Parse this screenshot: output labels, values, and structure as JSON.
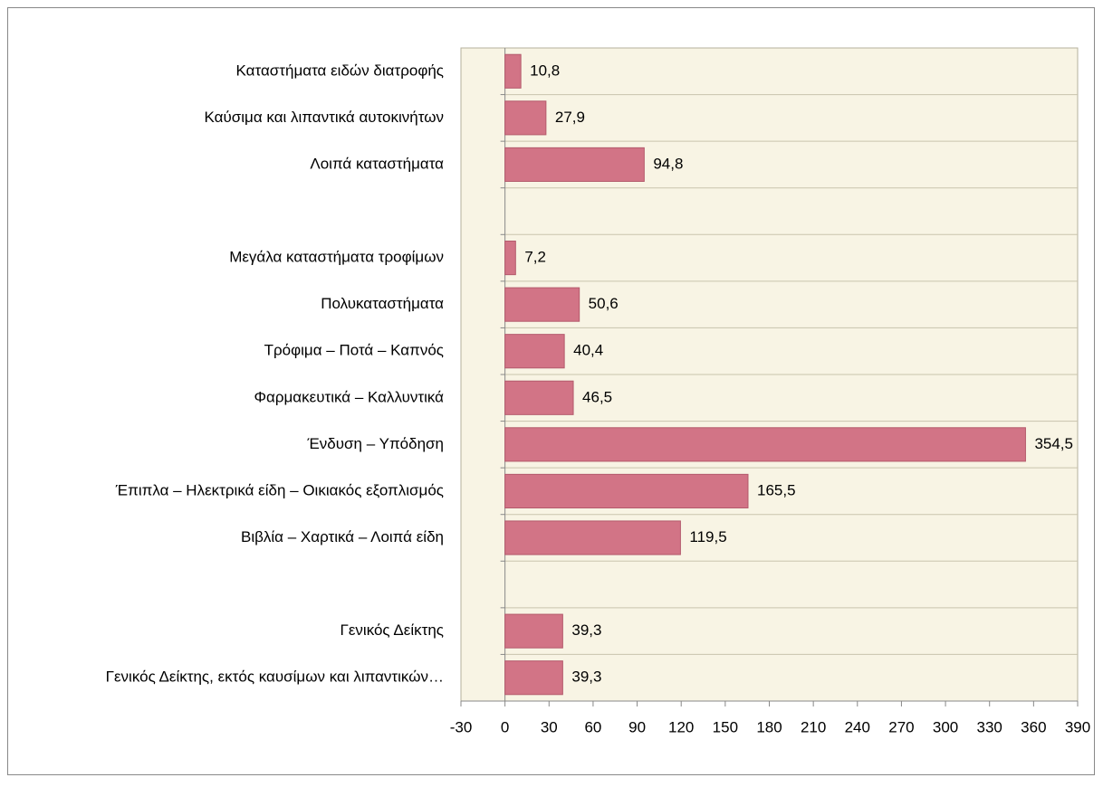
{
  "chart_data": {
    "type": "bar",
    "orientation": "horizontal",
    "categories": [
      "Καταστήματα ειδών διατροφής",
      "Καύσιμα και λιπαντικά αυτοκινήτων",
      "Λοιπά καταστήματα",
      null,
      "Μεγάλα καταστήματα τροφίμων",
      "Πολυκαταστήματα",
      "Τρόφιμα – Ποτά – Καπνός",
      "Φαρμακευτικά – Καλλυντικά",
      "Ένδυση – Υπόδηση",
      "Έπιπλα – Ηλεκτρικά είδη – Οικιακός εξοπλισμός",
      "Βιβλία – Χαρτικά – Λοιπά είδη",
      null,
      "Γενικός Δείκτης",
      "Γενικός Δείκτης, εκτός καυσίμων και λιπαντικών…"
    ],
    "values": [
      10.8,
      27.9,
      94.8,
      null,
      7.2,
      50.6,
      40.4,
      46.5,
      354.5,
      165.5,
      119.5,
      null,
      39.3,
      39.3
    ],
    "value_labels": [
      "10,8",
      "27,9",
      "94,8",
      null,
      "7,2",
      "50,6",
      "40,4",
      "46,5",
      "354,5",
      "165,5",
      "119,5",
      null,
      "39,3",
      "39,3"
    ],
    "color": "#d27486",
    "xlim": [
      -30,
      390
    ],
    "xticks": [
      -30,
      0,
      30,
      60,
      90,
      120,
      150,
      180,
      210,
      240,
      270,
      300,
      330,
      360,
      390
    ]
  }
}
